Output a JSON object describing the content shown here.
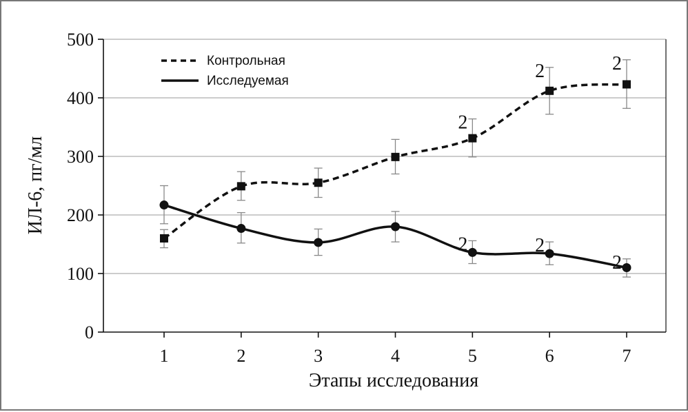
{
  "chart_data": {
    "type": "line",
    "xlabel": "Этапы исследования",
    "ylabel": "ИЛ-6, пг/мл",
    "categories": [
      "1",
      "2",
      "3",
      "4",
      "5",
      "6",
      "7"
    ],
    "ylim": [
      0,
      500
    ],
    "yticks": [
      0,
      100,
      200,
      300,
      400,
      500
    ],
    "grid": "horizontal",
    "legend_position": "top-left",
    "series": [
      {
        "name": "Контрольная",
        "style": "dashed",
        "marker": "square",
        "color": "#111111",
        "values": [
          160,
          249,
          255,
          299,
          331,
          412,
          423
        ],
        "err_low": [
          144,
          225,
          230,
          270,
          299,
          372,
          382
        ],
        "err_high": [
          175,
          274,
          280,
          329,
          364,
          452,
          465
        ],
        "annotations": [
          "",
          "",
          "",
          "",
          "2",
          "2",
          "2"
        ]
      },
      {
        "name": "Исследуемая",
        "style": "solid",
        "marker": "circle",
        "color": "#111111",
        "values": [
          217,
          177,
          153,
          180,
          136,
          134,
          110
        ],
        "err_low": [
          185,
          152,
          131,
          154,
          117,
          115,
          94
        ],
        "err_high": [
          250,
          204,
          176,
          206,
          156,
          154,
          125
        ],
        "annotations": [
          "",
          "",
          "",
          "",
          "2",
          "2",
          "2"
        ]
      }
    ],
    "gridline_color": "#bbbbbb",
    "errorbar_color": "#888888"
  }
}
